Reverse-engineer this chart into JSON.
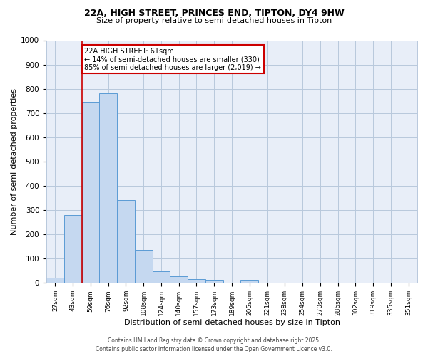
{
  "title_line1": "22A, HIGH STREET, PRINCES END, TIPTON, DY4 9HW",
  "title_line2": "Size of property relative to semi-detached houses in Tipton",
  "categories": [
    "27sqm",
    "43sqm",
    "59sqm",
    "76sqm",
    "92sqm",
    "108sqm",
    "124sqm",
    "140sqm",
    "157sqm",
    "173sqm",
    "189sqm",
    "205sqm",
    "221sqm",
    "238sqm",
    "254sqm",
    "270sqm",
    "286sqm",
    "302sqm",
    "319sqm",
    "335sqm",
    "351sqm"
  ],
  "values": [
    20,
    280,
    745,
    780,
    340,
    135,
    48,
    27,
    15,
    13,
    0,
    12,
    0,
    0,
    0,
    0,
    0,
    0,
    0,
    0,
    0
  ],
  "bar_color": "#c5d8f0",
  "bar_edge_color": "#5b9bd5",
  "grid_color": "#b8c8dc",
  "xlabel": "Distribution of semi-detached houses by size in Tipton",
  "ylabel": "Number of semi-detached properties",
  "ylim": [
    0,
    1000
  ],
  "yticks": [
    0,
    100,
    200,
    300,
    400,
    500,
    600,
    700,
    800,
    900,
    1000
  ],
  "red_line_index": 2,
  "annotation_title": "22A HIGH STREET: 61sqm",
  "annotation_line1": "← 14% of semi-detached houses are smaller (330)",
  "annotation_line2": "85% of semi-detached houses are larger (2,019) →",
  "annotation_box_color": "#ffffff",
  "annotation_box_edge": "#cc0000",
  "red_line_color": "#cc0000",
  "footer_line1": "Contains HM Land Registry data © Crown copyright and database right 2025.",
  "footer_line2": "Contains public sector information licensed under the Open Government Licence v3.0.",
  "fig_bg_color": "#ffffff",
  "plot_bg_color": "#e8eef8"
}
